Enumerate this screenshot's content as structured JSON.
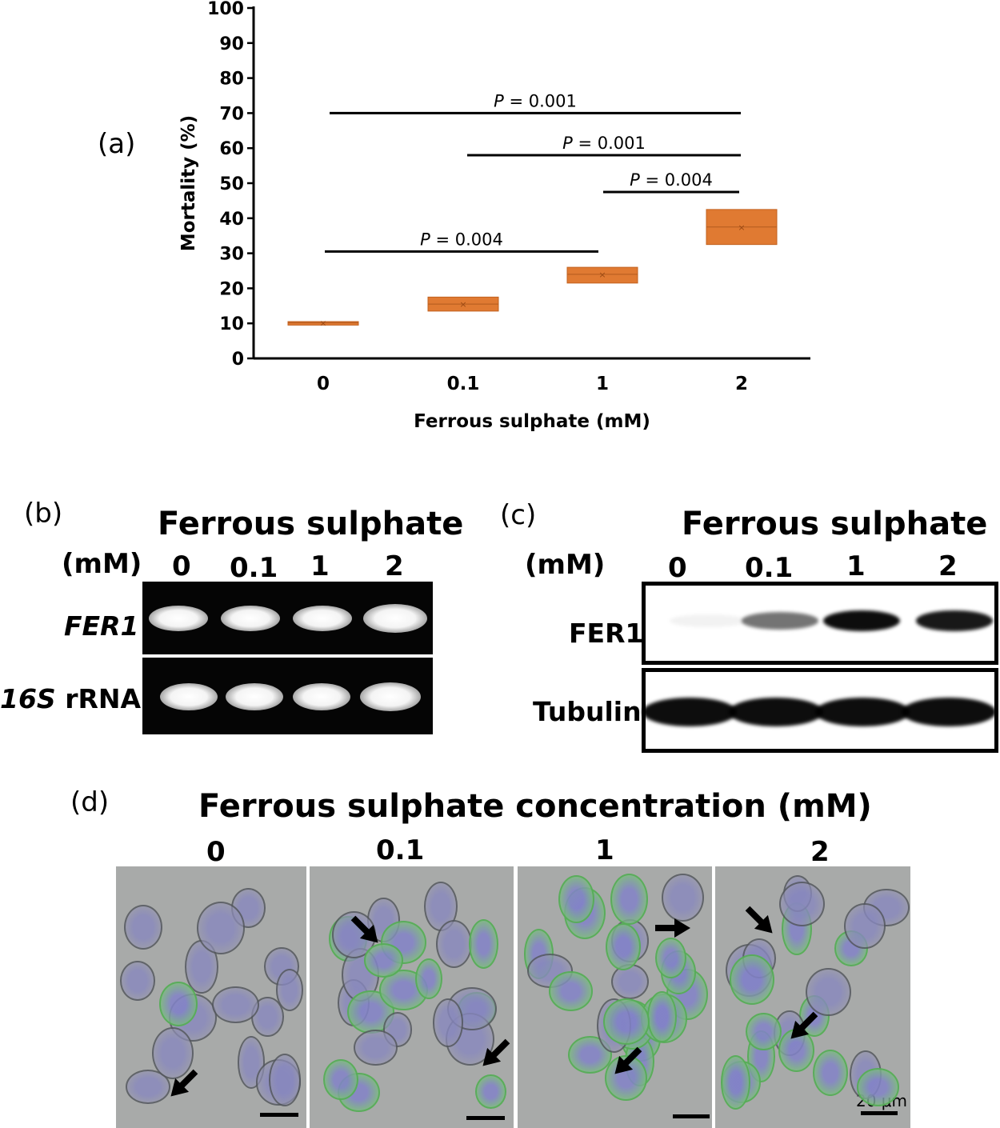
{
  "panel_a": {
    "label": "(a)",
    "significance": [
      {
        "text_p": "P",
        "text_rest": " = 0.001",
        "from": "0",
        "to": "2",
        "y": 70
      },
      {
        "text_p": "P",
        "text_rest": " = 0.001",
        "from": "0.1",
        "to": "2",
        "y": 58
      },
      {
        "text_p": "P",
        "text_rest": " = 0.004",
        "from": "1",
        "to": "2",
        "y": 47.5
      },
      {
        "text_p": "P",
        "text_rest": " = 0.004",
        "from": "0",
        "to": "1",
        "y": 30.5
      }
    ]
  },
  "chart_data": {
    "type": "box",
    "title": "",
    "xlabel": "Ferrous sulphate (mM)",
    "ylabel": "Mortality (%)",
    "ylim": [
      0,
      100
    ],
    "yticks": [
      0,
      10,
      20,
      30,
      40,
      50,
      60,
      70,
      80,
      90,
      100
    ],
    "categories": [
      "0",
      "0.1",
      "1",
      "2"
    ],
    "series": [
      {
        "color": "#e07a32",
        "boxes": [
          {
            "q1": 9.5,
            "median": 10.2,
            "q3": 10.5,
            "mean": 10.2
          },
          {
            "q1": 13.5,
            "median": 15.5,
            "q3": 17.5,
            "mean": 15.5
          },
          {
            "q1": 21.5,
            "median": 24.0,
            "q3": 26.0,
            "mean": 24.0
          },
          {
            "q1": 32.5,
            "median": 37.5,
            "q3": 42.5,
            "mean": 37.5
          }
        ]
      }
    ]
  },
  "panel_b": {
    "label": "(b)",
    "title": "Ferrous sulphate",
    "unit": "(mM)",
    "lanes": [
      "0",
      "0.1",
      "1",
      "2"
    ],
    "rows": [
      {
        "italic": "FER1",
        "rest": ""
      },
      {
        "italic": "16S",
        "rest": " rRNA"
      }
    ]
  },
  "panel_c": {
    "label": "(c)",
    "title": "Ferrous sulphate",
    "unit": "(mM)",
    "lanes": [
      "0",
      "0.1",
      "1",
      "2"
    ],
    "rows": [
      "FER1",
      "Tubulin"
    ],
    "fer1_intensity": [
      0.0,
      0.55,
      1.0,
      0.95
    ],
    "tubulin_intensity": [
      1.0,
      1.0,
      1.0,
      1.0
    ]
  },
  "panel_d": {
    "label": "(d)",
    "title": "Ferrous sulphate concentration (mM)",
    "concentrations": [
      "0",
      "0.1",
      "1",
      "2"
    ],
    "scale_label": "20 μm"
  }
}
